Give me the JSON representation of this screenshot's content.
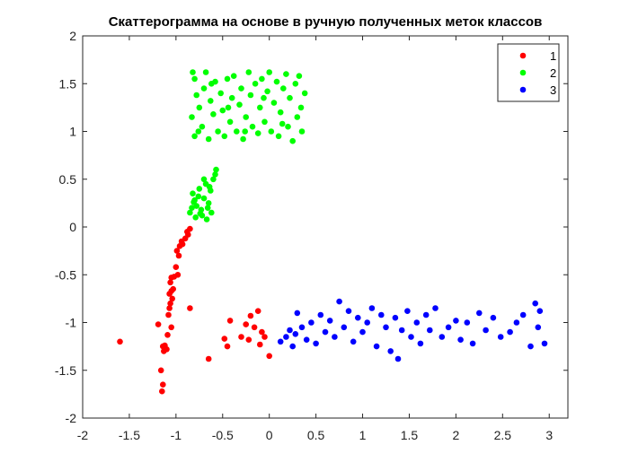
{
  "chart_data": {
    "type": "scatter",
    "title": "Скаттерограмма на основе в ручную полученных меток классов",
    "xlabel": "",
    "ylabel": "",
    "xlim": [
      -2,
      3.2
    ],
    "ylim": [
      -2,
      2
    ],
    "xticks": [
      -2,
      -1.5,
      -1,
      -0.5,
      0,
      0.5,
      1,
      1.5,
      2,
      2.5,
      3
    ],
    "xtick_labels": [
      "-2",
      "-1.5",
      "-1",
      "-0.5",
      "0",
      "0.5",
      "1",
      "1.5",
      "2",
      "2.5",
      "3"
    ],
    "yticks": [
      -2,
      -1.5,
      -1,
      -0.5,
      0,
      0.5,
      1,
      1.5,
      2
    ],
    "ytick_labels": [
      "-2",
      "-1.5",
      "-1",
      "-0.5",
      "0",
      "0.5",
      "1",
      "1.5",
      "2"
    ],
    "grid": false,
    "legend_position": "top-right",
    "series": [
      {
        "name": "1",
        "color": "#ff0000",
        "points": [
          [
            -1.6,
            -1.2
          ],
          [
            -1.15,
            -1.72
          ],
          [
            -1.14,
            -1.65
          ],
          [
            -1.16,
            -1.5
          ],
          [
            -1.13,
            -1.3
          ],
          [
            -1.12,
            -1.24
          ],
          [
            -1.14,
            -1.25
          ],
          [
            -1.1,
            -1.28
          ],
          [
            -1.09,
            -1.13
          ],
          [
            -1.05,
            -1.05
          ],
          [
            -1.19,
            -1.02
          ],
          [
            -1.08,
            -0.92
          ],
          [
            -1.07,
            -0.85
          ],
          [
            -1.06,
            -0.8
          ],
          [
            -1.04,
            -0.75
          ],
          [
            -1.07,
            -0.7
          ],
          [
            -1.05,
            -0.67
          ],
          [
            -1.03,
            -0.65
          ],
          [
            -0.85,
            -0.85
          ],
          [
            -1.05,
            -0.53
          ],
          [
            -1.02,
            -0.52
          ],
          [
            -0.98,
            -0.5
          ],
          [
            -1.06,
            -0.58
          ],
          [
            -1.0,
            -0.42
          ],
          [
            -0.97,
            -0.3
          ],
          [
            -0.99,
            -0.25
          ],
          [
            -0.96,
            -0.2
          ],
          [
            -0.93,
            -0.18
          ],
          [
            -0.9,
            -0.12
          ],
          [
            -0.94,
            -0.15
          ],
          [
            -0.88,
            -0.05
          ],
          [
            -0.85,
            -0.02
          ],
          [
            -0.87,
            -0.08
          ],
          [
            -0.65,
            -1.38
          ],
          [
            -0.48,
            -1.17
          ],
          [
            -0.45,
            -1.25
          ],
          [
            -0.42,
            -0.98
          ],
          [
            -0.3,
            -1.15
          ],
          [
            -0.25,
            -1.02
          ],
          [
            -0.22,
            -1.18
          ],
          [
            -0.2,
            -0.93
          ],
          [
            -0.16,
            -1.05
          ],
          [
            -0.12,
            -0.88
          ],
          [
            -0.1,
            -1.23
          ],
          [
            -0.08,
            -1.1
          ],
          [
            -0.05,
            -1.15
          ],
          [
            0.0,
            -1.35
          ]
        ]
      },
      {
        "name": "2",
        "color": "#00ff00",
        "points": [
          [
            -0.85,
            0.15
          ],
          [
            -0.83,
            0.2
          ],
          [
            -0.8,
            0.28
          ],
          [
            -0.82,
            0.35
          ],
          [
            -0.78,
            0.22
          ],
          [
            -0.75,
            0.4
          ],
          [
            -0.73,
            0.18
          ],
          [
            -0.7,
            0.3
          ],
          [
            -0.68,
            0.45
          ],
          [
            -0.72,
            0.12
          ],
          [
            -0.65,
            0.25
          ],
          [
            -0.63,
            0.38
          ],
          [
            -0.6,
            0.5
          ],
          [
            -0.58,
            0.55
          ],
          [
            -0.57,
            0.6
          ],
          [
            -0.62,
            0.15
          ],
          [
            -0.66,
            0.2
          ],
          [
            -0.79,
            0.1
          ],
          [
            -0.76,
            0.32
          ],
          [
            -0.7,
            0.5
          ],
          [
            -0.67,
            0.08
          ],
          [
            -0.64,
            0.42
          ],
          [
            -0.81,
            0.26
          ],
          [
            -0.74,
            0.14
          ],
          [
            -0.82,
            1.62
          ],
          [
            -0.8,
            1.55
          ],
          [
            -0.78,
            1.38
          ],
          [
            -0.83,
            1.15
          ],
          [
            -0.8,
            0.95
          ],
          [
            -0.75,
            1.25
          ],
          [
            -0.72,
            1.05
          ],
          [
            -0.7,
            1.45
          ],
          [
            -0.68,
            1.62
          ],
          [
            -0.65,
            0.92
          ],
          [
            -0.63,
            1.32
          ],
          [
            -0.6,
            1.18
          ],
          [
            -0.58,
            1.52
          ],
          [
            -0.55,
            1.0
          ],
          [
            -0.52,
            1.4
          ],
          [
            -0.5,
            1.22
          ],
          [
            -0.48,
            0.95
          ],
          [
            -0.45,
            1.55
          ],
          [
            -0.42,
            1.1
          ],
          [
            -0.4,
            1.35
          ],
          [
            -0.38,
            1.58
          ],
          [
            -0.35,
            1.0
          ],
          [
            -0.32,
            1.28
          ],
          [
            -0.3,
            1.45
          ],
          [
            -0.28,
            0.92
          ],
          [
            -0.25,
            1.15
          ],
          [
            -0.22,
            1.62
          ],
          [
            -0.2,
            1.38
          ],
          [
            -0.18,
            1.05
          ],
          [
            -0.15,
            1.5
          ],
          [
            -0.12,
            0.98
          ],
          [
            -0.1,
            1.25
          ],
          [
            -0.08,
            1.55
          ],
          [
            -0.05,
            1.1
          ],
          [
            -0.02,
            1.42
          ],
          [
            0.0,
            1.62
          ],
          [
            0.02,
            1.0
          ],
          [
            0.05,
            1.3
          ],
          [
            0.08,
            1.52
          ],
          [
            0.1,
            0.95
          ],
          [
            0.12,
            1.2
          ],
          [
            0.15,
            1.45
          ],
          [
            0.18,
            1.6
          ],
          [
            0.2,
            1.05
          ],
          [
            0.22,
            1.35
          ],
          [
            0.25,
            0.9
          ],
          [
            0.28,
            1.5
          ],
          [
            0.3,
            1.15
          ],
          [
            0.32,
            1.58
          ],
          [
            0.35,
            1.0
          ],
          [
            0.38,
            1.4
          ],
          [
            -0.76,
            1.0
          ],
          [
            -0.62,
            1.5
          ],
          [
            -0.44,
            1.25
          ],
          [
            -0.26,
            1.0
          ],
          [
            -0.06,
            1.35
          ],
          [
            0.14,
            1.08
          ],
          [
            0.34,
            1.25
          ]
        ]
      },
      {
        "name": "3",
        "color": "#0000ff",
        "points": [
          [
            0.12,
            -1.2
          ],
          [
            0.18,
            -1.15
          ],
          [
            0.22,
            -1.08
          ],
          [
            0.25,
            -1.25
          ],
          [
            0.28,
            -1.12
          ],
          [
            0.3,
            -0.9
          ],
          [
            0.35,
            -1.05
          ],
          [
            0.4,
            -1.18
          ],
          [
            0.45,
            -1.0
          ],
          [
            0.5,
            -1.22
          ],
          [
            0.55,
            -0.92
          ],
          [
            0.6,
            -1.1
          ],
          [
            0.65,
            -0.98
          ],
          [
            0.7,
            -1.15
          ],
          [
            0.75,
            -0.78
          ],
          [
            0.8,
            -1.05
          ],
          [
            0.85,
            -0.88
          ],
          [
            0.9,
            -1.2
          ],
          [
            0.95,
            -0.95
          ],
          [
            1.0,
            -1.1
          ],
          [
            1.05,
            -1.0
          ],
          [
            1.1,
            -0.85
          ],
          [
            1.15,
            -1.25
          ],
          [
            1.2,
            -0.92
          ],
          [
            1.25,
            -1.05
          ],
          [
            1.3,
            -1.3
          ],
          [
            1.35,
            -0.95
          ],
          [
            1.38,
            -1.38
          ],
          [
            1.42,
            -1.08
          ],
          [
            1.48,
            -0.88
          ],
          [
            1.52,
            -1.15
          ],
          [
            1.58,
            -1.0
          ],
          [
            1.62,
            -1.22
          ],
          [
            1.68,
            -0.92
          ],
          [
            1.72,
            -1.08
          ],
          [
            1.78,
            -0.85
          ],
          [
            1.85,
            -1.15
          ],
          [
            1.92,
            -1.05
          ],
          [
            2.0,
            -0.98
          ],
          [
            2.05,
            -1.18
          ],
          [
            2.12,
            -1.0
          ],
          [
            2.18,
            -1.22
          ],
          [
            2.25,
            -0.9
          ],
          [
            2.32,
            -1.08
          ],
          [
            2.4,
            -0.95
          ],
          [
            2.48,
            -1.15
          ],
          [
            2.58,
            -1.1
          ],
          [
            2.65,
            -1.0
          ],
          [
            2.72,
            -0.92
          ],
          [
            2.8,
            -1.25
          ],
          [
            2.85,
            -0.8
          ],
          [
            2.9,
            -0.88
          ],
          [
            2.95,
            -1.22
          ],
          [
            2.88,
            -1.05
          ]
        ]
      }
    ]
  }
}
